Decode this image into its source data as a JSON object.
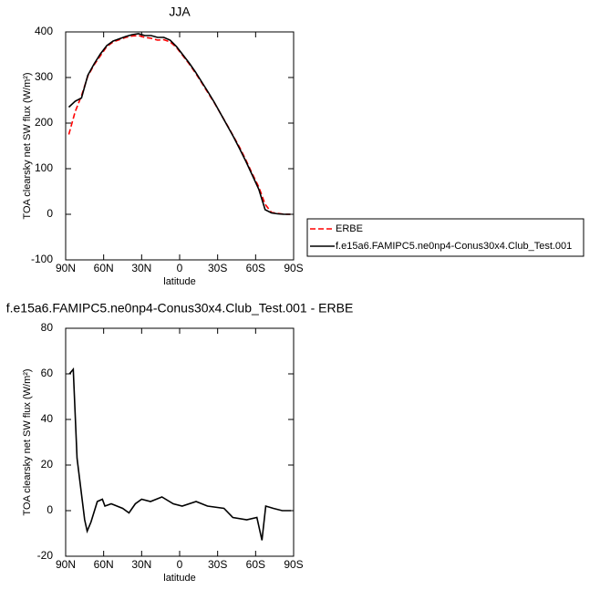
{
  "chart_data": [
    {
      "type": "line",
      "title": "JJA",
      "xlabel": "latitude",
      "ylabel": "TOA clearsky net SW flux (W/m²)",
      "x": [
        87.5,
        82.5,
        77.5,
        72.5,
        67.5,
        62.5,
        57.5,
        52.5,
        47.5,
        42.5,
        37.5,
        32.5,
        27.5,
        22.5,
        17.5,
        12.5,
        7.5,
        2.5,
        -2.5,
        -7.5,
        -12.5,
        -17.5,
        -22.5,
        -27.5,
        -32.5,
        -37.5,
        -42.5,
        -47.5,
        -52.5,
        -57.5,
        -62.5,
        -67.5,
        -72.5,
        -77.5,
        -82.5,
        -87.5
      ],
      "series": [
        {
          "name": "ERBE",
          "color": "#ff0000",
          "dashed": true,
          "values": [
            175,
            225,
            260,
            303,
            328,
            348,
            368,
            378,
            383,
            388,
            391,
            392,
            388,
            386,
            382,
            383,
            378,
            366,
            348,
            330,
            310,
            288,
            266,
            244,
            220,
            196,
            171,
            146,
            118,
            88,
            60,
            22,
            4,
            2,
            0,
            0
          ]
        },
        {
          "name": "f.e15a6.FAMIPC5.ne0np4-Conus30x4.Club_Test.001",
          "color": "#000000",
          "dashed": false,
          "values": [
            235,
            248,
            255,
            305,
            330,
            352,
            370,
            380,
            385,
            390,
            394,
            396,
            392,
            392,
            388,
            388,
            382,
            368,
            350,
            332,
            312,
            290,
            268,
            245,
            220,
            195,
            170,
            143,
            115,
            85,
            55,
            10,
            3,
            1,
            0,
            0
          ]
        }
      ],
      "xlim": [
        90,
        -90
      ],
      "xticks": [
        {
          "value": 90,
          "label": "90N"
        },
        {
          "value": 60,
          "label": "60N"
        },
        {
          "value": 30,
          "label": "30N"
        },
        0,
        {
          "value": -30,
          "label": "30S"
        },
        {
          "value": -60,
          "label": "60S"
        },
        {
          "value": -90,
          "label": "90S"
        }
      ],
      "ylim": [
        -100,
        400
      ],
      "yticks": [
        -100,
        0,
        100,
        200,
        300,
        400
      ],
      "legend": "right"
    },
    {
      "type": "line",
      "title": "f.e15a6.FAMIPC5.ne0np4-Conus30x4.Club_Test.001 - ERBE",
      "xlabel": "latitude",
      "ylabel": "TOA clearsky net SW flux (W/m²)",
      "x": [
        87,
        84,
        81,
        77,
        75,
        73,
        70,
        65,
        61,
        59,
        54,
        45,
        40,
        35,
        30,
        23,
        14,
        5,
        -2,
        -13,
        -22,
        -35,
        -42,
        -53,
        -61,
        -65,
        -68,
        -74,
        -81,
        -88
      ],
      "series": [
        {
          "color": "#000000",
          "dashed": false,
          "values": [
            60,
            62,
            23,
            5,
            -4,
            -9,
            -5,
            4,
            5,
            2,
            3,
            1,
            -1,
            3,
            5,
            4,
            6,
            3,
            2,
            4,
            2,
            1,
            -3,
            -4,
            -3,
            -13,
            2,
            1,
            0,
            0
          ]
        }
      ],
      "xlim": [
        90,
        -90
      ],
      "xticks": [
        {
          "value": 90,
          "label": "90N"
        },
        {
          "value": 60,
          "label": "60N"
        },
        {
          "value": 30,
          "label": "30N"
        },
        0,
        {
          "value": -30,
          "label": "30S"
        },
        {
          "value": -60,
          "label": "60S"
        },
        {
          "value": -90,
          "label": "90S"
        }
      ],
      "ylim": [
        -20,
        80
      ],
      "yticks": [
        -20,
        0,
        20,
        40,
        60,
        80
      ]
    }
  ]
}
